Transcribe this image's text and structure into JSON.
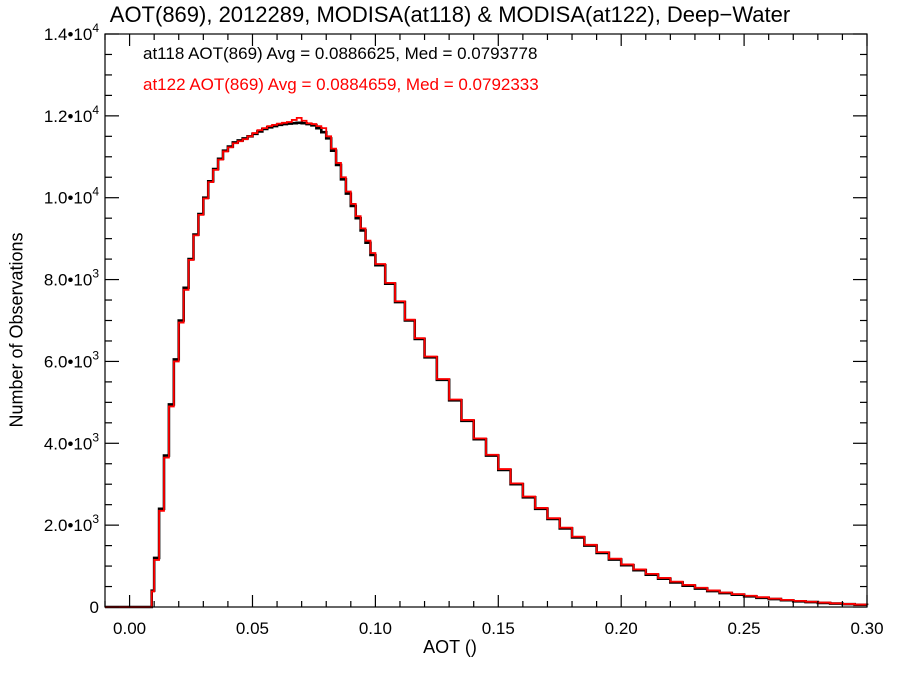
{
  "chart_data": {
    "type": "line",
    "title": "AOT(869), 2012289, MODISA(at118) & MODISA(at122), Deep−Water",
    "xlabel": "AOT ()",
    "ylabel": "Number of Observations",
    "xlim": [
      -0.01,
      0.3
    ],
    "ylim": [
      0,
      14000
    ],
    "grid": false,
    "x_ticks": [
      {
        "value": 0.0,
        "label": "0.00"
      },
      {
        "value": 0.05,
        "label": "0.05"
      },
      {
        "value": 0.1,
        "label": "0.10"
      },
      {
        "value": 0.15,
        "label": "0.15"
      },
      {
        "value": 0.2,
        "label": "0.20"
      },
      {
        "value": 0.25,
        "label": "0.25"
      },
      {
        "value": 0.3,
        "label": "0.30"
      }
    ],
    "y_ticks": [
      {
        "value": 0,
        "mantissa": "0",
        "exp": ""
      },
      {
        "value": 2000,
        "mantissa": "2.0•10",
        "exp": "3"
      },
      {
        "value": 4000,
        "mantissa": "4.0•10",
        "exp": "3"
      },
      {
        "value": 6000,
        "mantissa": "6.0•10",
        "exp": "3"
      },
      {
        "value": 8000,
        "mantissa": "8.0•10",
        "exp": "3"
      },
      {
        "value": 10000,
        "mantissa": "1.0•10",
        "exp": "4"
      },
      {
        "value": 12000,
        "mantissa": "1.2•10",
        "exp": "4"
      },
      {
        "value": 14000,
        "mantissa": "1.4•10",
        "exp": "4"
      }
    ],
    "annotations": [
      {
        "text": "at118 AOT(869) Avg = 0.0886625, Med = 0.0793778",
        "color": "#000000"
      },
      {
        "text": "at122 AOT(869) Avg = 0.0884659, Med = 0.0792333",
        "color": "#ff0000"
      }
    ],
    "series": [
      {
        "color": "#000000",
        "x": [
          -0.01,
          0.005,
          0.008,
          0.009,
          0.01,
          0.012,
          0.014,
          0.016,
          0.018,
          0.02,
          0.022,
          0.024,
          0.026,
          0.028,
          0.03,
          0.032,
          0.034,
          0.036,
          0.038,
          0.04,
          0.042,
          0.044,
          0.046,
          0.048,
          0.05,
          0.052,
          0.054,
          0.056,
          0.058,
          0.06,
          0.062,
          0.064,
          0.066,
          0.068,
          0.07,
          0.072,
          0.074,
          0.076,
          0.078,
          0.08,
          0.082,
          0.084,
          0.086,
          0.088,
          0.09,
          0.092,
          0.094,
          0.096,
          0.098,
          0.1,
          0.104,
          0.108,
          0.112,
          0.116,
          0.12,
          0.125,
          0.13,
          0.135,
          0.14,
          0.145,
          0.15,
          0.155,
          0.16,
          0.165,
          0.17,
          0.175,
          0.18,
          0.185,
          0.19,
          0.195,
          0.2,
          0.205,
          0.21,
          0.215,
          0.22,
          0.225,
          0.23,
          0.235,
          0.24,
          0.245,
          0.25,
          0.255,
          0.26,
          0.265,
          0.27,
          0.275,
          0.28,
          0.285,
          0.29,
          0.295,
          0.3
        ],
        "values": [
          0,
          0,
          0,
          400,
          1200,
          2400,
          3700,
          4950,
          6050,
          7000,
          7800,
          8500,
          9100,
          9600,
          10000,
          10400,
          10700,
          10950,
          11150,
          11250,
          11350,
          11400,
          11450,
          11500,
          11560,
          11620,
          11680,
          11720,
          11750,
          11780,
          11800,
          11810,
          11820,
          11830,
          11820,
          11800,
          11770,
          11700,
          11600,
          11450,
          11150,
          10800,
          10450,
          10100,
          9800,
          9500,
          9200,
          8900,
          8600,
          8350,
          7900,
          7450,
          7000,
          6550,
          6100,
          5550,
          5050,
          4550,
          4100,
          3700,
          3350,
          3000,
          2680,
          2400,
          2150,
          1920,
          1700,
          1500,
          1320,
          1160,
          1020,
          900,
          790,
          690,
          600,
          520,
          450,
          390,
          340,
          300,
          260,
          225,
          195,
          165,
          140,
          120,
          100,
          85,
          70,
          55,
          45
        ]
      },
      {
        "color": "#ff0000",
        "x": [
          -0.01,
          0.005,
          0.008,
          0.009,
          0.01,
          0.012,
          0.014,
          0.016,
          0.018,
          0.02,
          0.022,
          0.024,
          0.026,
          0.028,
          0.03,
          0.032,
          0.034,
          0.036,
          0.038,
          0.04,
          0.042,
          0.044,
          0.046,
          0.048,
          0.05,
          0.052,
          0.054,
          0.056,
          0.058,
          0.06,
          0.062,
          0.064,
          0.066,
          0.068,
          0.07,
          0.072,
          0.074,
          0.076,
          0.078,
          0.08,
          0.082,
          0.084,
          0.086,
          0.088,
          0.09,
          0.092,
          0.094,
          0.096,
          0.098,
          0.1,
          0.104,
          0.108,
          0.112,
          0.116,
          0.12,
          0.125,
          0.13,
          0.135,
          0.14,
          0.145,
          0.15,
          0.155,
          0.16,
          0.165,
          0.17,
          0.175,
          0.18,
          0.185,
          0.19,
          0.195,
          0.2,
          0.205,
          0.21,
          0.215,
          0.22,
          0.225,
          0.23,
          0.235,
          0.24,
          0.245,
          0.25,
          0.255,
          0.26,
          0.265,
          0.27,
          0.275,
          0.28,
          0.285,
          0.29,
          0.295,
          0.3
        ],
        "values": [
          0,
          0,
          0,
          380,
          1150,
          2350,
          3650,
          4900,
          6000,
          6950,
          7750,
          8480,
          9080,
          9580,
          9980,
          10380,
          10680,
          10930,
          11130,
          11230,
          11330,
          11380,
          11430,
          11500,
          11580,
          11650,
          11700,
          11750,
          11780,
          11810,
          11830,
          11850,
          11900,
          11950,
          11880,
          11820,
          11800,
          11750,
          11700,
          11500,
          11200,
          10850,
          10500,
          10150,
          9850,
          9550,
          9250,
          8950,
          8650,
          8380,
          7920,
          7470,
          7020,
          6570,
          6120,
          5570,
          5070,
          4570,
          4120,
          3720,
          3370,
          3020,
          2700,
          2420,
          2170,
          1940,
          1720,
          1520,
          1340,
          1180,
          1040,
          920,
          810,
          710,
          620,
          540,
          470,
          405,
          355,
          315,
          275,
          240,
          205,
          175,
          150,
          128,
          108,
          90,
          75,
          60,
          48
        ]
      }
    ]
  }
}
